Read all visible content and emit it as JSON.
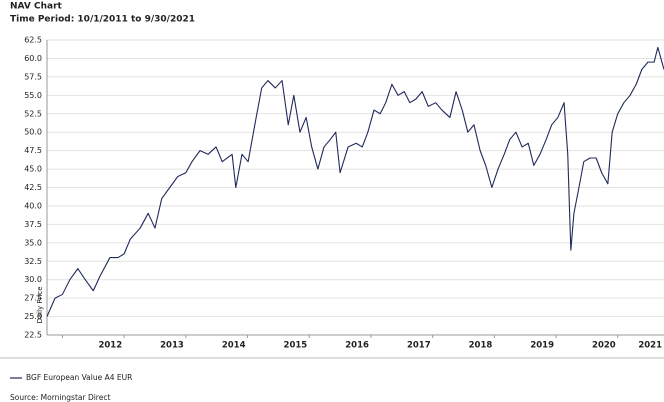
{
  "chart_data": {
    "type": "line",
    "title": "NAV Chart",
    "subtitle": "Time Period: 10/1/2011 to 9/30/2021",
    "y_label": "Daily Price",
    "source": "Source: Morningstar Direct",
    "grid": true,
    "xlim": [
      2011.75,
      2021.75
    ],
    "xticks": [
      2012,
      2013,
      2014,
      2015,
      2016,
      2017,
      2018,
      2019,
      2020,
      2021
    ],
    "ylim": [
      22.5,
      62.5
    ],
    "yticks": [
      22.5,
      {
        "value": 25,
        "label": "25.0"
      },
      27.5,
      {
        "value": 30,
        "label": "30.0"
      },
      32.5,
      {
        "value": 35,
        "label": "35.0"
      },
      37.5,
      {
        "value": 40,
        "label": "40.0"
      },
      42.5,
      {
        "value": 45,
        "label": "45.0"
      },
      47.5,
      {
        "value": 50,
        "label": "50.0"
      },
      52.5,
      {
        "value": 55,
        "label": "55.0"
      },
      57.5,
      {
        "value": 60,
        "label": "60.0"
      },
      62.5
    ],
    "x": [
      2011.75,
      2011.88,
      2012.0,
      2012.12,
      2012.25,
      2012.37,
      2012.5,
      2012.61,
      2012.77,
      2012.9,
      2013.0,
      2013.1,
      2013.26,
      2013.39,
      2013.5,
      2013.61,
      2013.74,
      2013.87,
      2014.0,
      2014.1,
      2014.23,
      2014.36,
      2014.49,
      2014.59,
      2014.75,
      2014.81,
      2014.91,
      2015.01,
      2015.14,
      2015.23,
      2015.33,
      2015.45,
      2015.56,
      2015.66,
      2015.75,
      2015.85,
      2015.95,
      2016.04,
      2016.14,
      2016.24,
      2016.34,
      2016.43,
      2016.5,
      2016.63,
      2016.76,
      2016.86,
      2016.95,
      2017.05,
      2017.15,
      2017.24,
      2017.34,
      2017.44,
      2017.54,
      2017.63,
      2017.73,
      2017.83,
      2017.93,
      2018.05,
      2018.15,
      2018.28,
      2018.38,
      2018.48,
      2018.57,
      2018.67,
      2018.77,
      2018.86,
      2018.96,
      2019.06,
      2019.16,
      2019.25,
      2019.35,
      2019.45,
      2019.55,
      2019.64,
      2019.74,
      2019.84,
      2019.93,
      2020.03,
      2020.13,
      2020.19,
      2020.24,
      2020.29,
      2020.36,
      2020.45,
      2020.55,
      2020.65,
      2020.74,
      2020.84,
      2020.91,
      2021.0,
      2021.1,
      2021.2,
      2021.3,
      2021.39,
      2021.49,
      2021.59,
      2021.65,
      2021.75
    ],
    "series": [
      {
        "name": "BGF European Value A4 EUR",
        "color": "#1f2a5c",
        "values": [
          25,
          27.5,
          28,
          30,
          31.5,
          30,
          28.5,
          30.5,
          33,
          33,
          33.5,
          35.5,
          37,
          39,
          37,
          41,
          42.5,
          44,
          44.5,
          46,
          47.5,
          47,
          48,
          46,
          47,
          42.5,
          47,
          46,
          52,
          56,
          57,
          56,
          57,
          51,
          55,
          50,
          52,
          48,
          45,
          48,
          49,
          50,
          44.5,
          48,
          48.5,
          48,
          50,
          53,
          52.5,
          54,
          56.5,
          55,
          55.5,
          54,
          54.5,
          55.5,
          53.5,
          54,
          53,
          52,
          55.5,
          53,
          50,
          51,
          47.5,
          45.5,
          42.5,
          45,
          47,
          49,
          50,
          48,
          48.5,
          45.5,
          47,
          49,
          51,
          52,
          54,
          47,
          34,
          39,
          42,
          46,
          46.5,
          46.5,
          44.5,
          43,
          50,
          52.5,
          54,
          55,
          56.5,
          58.5,
          59.5,
          59.5,
          61.5,
          58.5
        ]
      }
    ]
  }
}
